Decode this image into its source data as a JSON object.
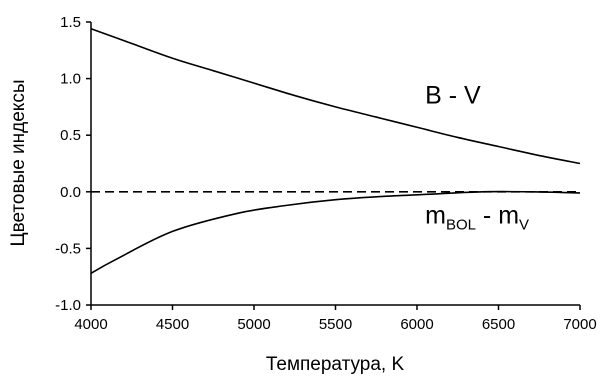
{
  "chart_data": {
    "type": "line",
    "title": "",
    "xlabel": "Температура, K",
    "ylabel": "Цветовые индексы",
    "xlim": [
      4000,
      7000
    ],
    "ylim": [
      -1.0,
      1.5
    ],
    "xticks": [
      "4000",
      "4500",
      "5000",
      "5500",
      "6000",
      "6500",
      "7000"
    ],
    "yticks": [
      "1.5",
      "1.0",
      "0.5",
      "0.0",
      "-0.5",
      "-1.0"
    ],
    "grid": false,
    "legend": "none",
    "series": [
      {
        "name": "B - V",
        "x": [
          4000,
          4250,
          4500,
          4750,
          5000,
          5250,
          5500,
          5750,
          6000,
          6250,
          6500,
          6750,
          7000
        ],
        "y": [
          1.44,
          1.31,
          1.18,
          1.07,
          0.96,
          0.85,
          0.75,
          0.66,
          0.57,
          0.48,
          0.4,
          0.32,
          0.25
        ]
      },
      {
        "name": "m_BOL - m_V",
        "x": [
          4000,
          4150,
          4500,
          4900,
          5200,
          5500,
          5800,
          6100,
          6400,
          6700,
          7000
        ],
        "y": [
          -0.72,
          -0.6,
          -0.35,
          -0.19,
          -0.12,
          -0.07,
          -0.04,
          -0.02,
          0.0,
          0.0,
          -0.01
        ]
      },
      {
        "name": "",
        "style": "dashed",
        "x": [
          4000,
          7000
        ],
        "y": [
          0.0,
          0.0
        ]
      }
    ],
    "annotations": [
      {
        "main": "B - V",
        "x": 6050,
        "y": 0.78
      },
      {
        "main": "m",
        "sub": "BOL",
        "middle": " - m",
        "sub2": "V",
        "x": 6050,
        "y": -0.28
      }
    ]
  }
}
